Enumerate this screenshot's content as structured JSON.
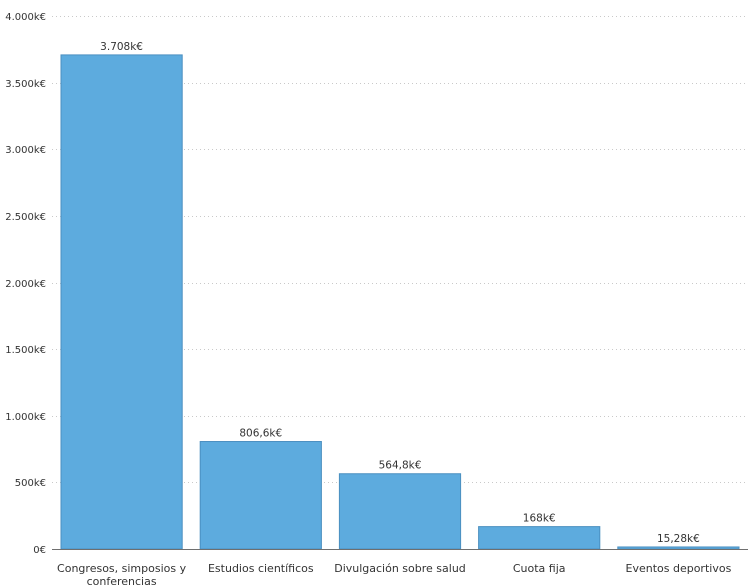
{
  "chart_data": {
    "type": "bar",
    "categories": [
      "Congresos, simposios y conferencias",
      "Estudios científicos",
      "Divulgación sobre salud",
      "Cuota fija",
      "Eventos deportivos"
    ],
    "category_lines": [
      [
        "Congresos, simposios y",
        "conferencias"
      ],
      [
        "Estudios científicos"
      ],
      [
        "Divulgación sobre salud"
      ],
      [
        "Cuota fija"
      ],
      [
        "Eventos deportivos"
      ]
    ],
    "values": [
      3708,
      806.6,
      564.8,
      168,
      15.28
    ],
    "data_labels": [
      "3.708k€",
      "806,6k€",
      "564,8k€",
      "168k€",
      "15,28k€"
    ],
    "y_ticks": [
      0,
      500,
      1000,
      1500,
      2000,
      2500,
      3000,
      3500,
      4000
    ],
    "y_tick_labels": [
      "0€",
      "500k€",
      "1.000k€",
      "1.500k€",
      "2.000k€",
      "2.500k€",
      "3.000k€",
      "3.500k€",
      "4.000k€"
    ],
    "ylim": [
      0,
      4000
    ],
    "unit": "k€",
    "grid": true,
    "bar_color": "#5dabde",
    "title": "",
    "xlabel": "",
    "ylabel": ""
  }
}
